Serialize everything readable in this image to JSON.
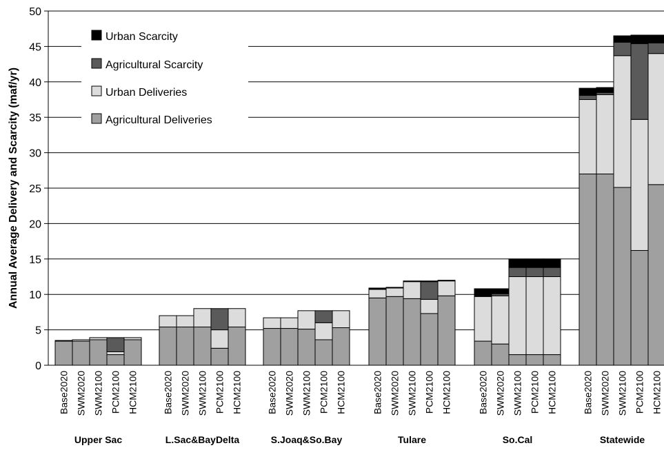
{
  "chart_data": {
    "type": "bar",
    "stacked": true,
    "title": "",
    "xlabel": "",
    "ylabel": "Annual Average Delivery and Scarcity (maf/yr)",
    "ylim": [
      0,
      50
    ],
    "yticks": [
      0,
      5,
      10,
      15,
      20,
      25,
      30,
      35,
      40,
      45,
      50
    ],
    "grid": "horizontal",
    "legend_position": "top-left",
    "scenarios": [
      "Base2020",
      "SWM2020",
      "SWM2100",
      "PCM2100",
      "HCM2100"
    ],
    "groups": [
      "Upper Sac",
      "L.Sac&BayDelta",
      "S.Joaq&So.Bay",
      "Tulare",
      "So.Cal",
      "Statewide"
    ],
    "series": [
      {
        "name": "Agricultural Deliveries",
        "color": "#a0a0a0",
        "values": [
          [
            3.4,
            3.4,
            3.6,
            1.5,
            3.6
          ],
          [
            5.4,
            5.4,
            5.4,
            2.4,
            5.4
          ],
          [
            5.2,
            5.2,
            5.1,
            3.6,
            5.3
          ],
          [
            9.5,
            9.7,
            9.4,
            7.3,
            9.8
          ],
          [
            3.4,
            3.0,
            1.5,
            1.5,
            1.5
          ],
          [
            27.0,
            27.0,
            25.1,
            16.2,
            25.5
          ]
        ]
      },
      {
        "name": "Urban Deliveries",
        "color": "#dcdcdc",
        "values": [
          [
            0.1,
            0.2,
            0.3,
            0.4,
            0.3
          ],
          [
            1.6,
            1.6,
            2.6,
            2.6,
            2.6
          ],
          [
            1.5,
            1.5,
            2.6,
            2.4,
            2.4
          ],
          [
            1.2,
            1.2,
            2.4,
            2.0,
            2.1
          ],
          [
            6.3,
            6.8,
            11.0,
            11.0,
            11.0
          ],
          [
            10.5,
            11.2,
            18.6,
            18.5,
            18.5
          ]
        ]
      },
      {
        "name": "Agricultural Scarcity",
        "color": "#5a5a5a",
        "values": [
          [
            0.0,
            0.0,
            0.0,
            2.0,
            0.0
          ],
          [
            0.0,
            0.0,
            0.0,
            3.0,
            0.0
          ],
          [
            0.0,
            0.0,
            0.0,
            1.7,
            0.0
          ],
          [
            0.0,
            0.0,
            0.0,
            2.5,
            0.0
          ],
          [
            0.0,
            0.3,
            1.3,
            1.3,
            1.3
          ],
          [
            0.6,
            0.3,
            1.9,
            10.7,
            1.5
          ]
        ]
      },
      {
        "name": "Urban Scarcity",
        "color": "#000000",
        "values": [
          [
            0.0,
            0.0,
            0.0,
            0.0,
            0.0
          ],
          [
            0.0,
            0.0,
            0.0,
            0.0,
            0.0
          ],
          [
            0.0,
            0.0,
            0.0,
            0.0,
            0.0
          ],
          [
            0.2,
            0.1,
            0.1,
            0.1,
            0.1
          ],
          [
            1.1,
            0.7,
            1.2,
            1.2,
            1.2
          ],
          [
            1.0,
            0.7,
            0.9,
            1.2,
            1.1
          ]
        ]
      }
    ],
    "legend_order": [
      "Urban Scarcity",
      "Agricultural Scarcity",
      "Urban Deliveries",
      "Agricultural Deliveries"
    ]
  }
}
